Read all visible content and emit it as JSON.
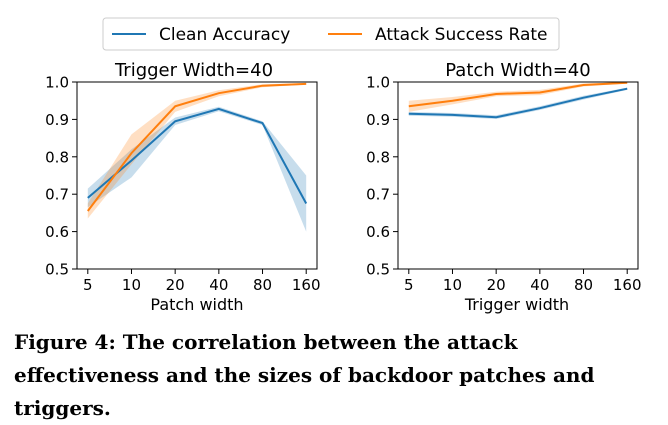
{
  "legend": {
    "placement": "top-center",
    "items": [
      {
        "label": "Clean Accuracy",
        "color": "#1f77b4"
      },
      {
        "label": "Attack Success Rate",
        "color": "#ff7f0e"
      }
    ]
  },
  "caption": "Figure 4: The correlation between the attack effectiveness and the sizes of backdoor patches and triggers.",
  "chart_data": [
    {
      "type": "line",
      "title": "Trigger Width=40",
      "xlabel": "Patch width",
      "ylabel": "",
      "x": [
        5,
        10,
        20,
        40,
        80,
        160
      ],
      "xticklabels": [
        "5",
        "10",
        "20",
        "40",
        "80",
        "160"
      ],
      "ylim": [
        0.5,
        1.0
      ],
      "yticks": [
        0.5,
        0.6,
        0.7,
        0.8,
        0.9,
        1.0
      ],
      "yticklabels": [
        "0.5",
        "0.6",
        "0.7",
        "0.8",
        "0.9",
        "1.0"
      ],
      "grid": false,
      "series": [
        {
          "name": "Clean Accuracy",
          "color": "#1f77b4",
          "values": [
            0.69,
            0.79,
            0.895,
            0.928,
            0.89,
            0.675
          ],
          "lower": [
            0.665,
            0.745,
            0.885,
            0.922,
            0.885,
            0.6
          ],
          "upper": [
            0.715,
            0.82,
            0.905,
            0.934,
            0.895,
            0.75
          ]
        },
        {
          "name": "Attack Success Rate",
          "color": "#ff7f0e",
          "values": [
            0.655,
            0.81,
            0.935,
            0.97,
            0.99,
            0.995
          ],
          "lower": [
            0.635,
            0.78,
            0.92,
            0.962,
            0.986,
            0.993
          ],
          "upper": [
            0.675,
            0.86,
            0.95,
            0.978,
            0.994,
            0.997
          ]
        }
      ]
    },
    {
      "type": "line",
      "title": "Patch Width=40",
      "xlabel": "Trigger width",
      "ylabel": "",
      "x": [
        5,
        10,
        20,
        40,
        80,
        160
      ],
      "xticklabels": [
        "5",
        "10",
        "20",
        "40",
        "80",
        "160"
      ],
      "ylim": [
        0.5,
        1.0
      ],
      "yticks": [
        0.5,
        0.6,
        0.7,
        0.8,
        0.9,
        1.0
      ],
      "yticklabels": [
        "0.5",
        "0.6",
        "0.7",
        "0.8",
        "0.9",
        "1.0"
      ],
      "grid": false,
      "series": [
        {
          "name": "Clean Accuracy",
          "color": "#1f77b4",
          "values": [
            0.915,
            0.912,
            0.906,
            0.93,
            0.958,
            0.982
          ],
          "lower": [
            0.91,
            0.907,
            0.901,
            0.925,
            0.953,
            0.979
          ],
          "upper": [
            0.92,
            0.917,
            0.911,
            0.935,
            0.963,
            0.985
          ]
        },
        {
          "name": "Attack Success Rate",
          "color": "#ff7f0e",
          "values": [
            0.935,
            0.95,
            0.968,
            0.972,
            0.992,
            0.998
          ],
          "lower": [
            0.92,
            0.94,
            0.962,
            0.965,
            0.988,
            0.996
          ],
          "upper": [
            0.95,
            0.96,
            0.974,
            0.979,
            0.996,
            1.0
          ]
        }
      ]
    }
  ]
}
